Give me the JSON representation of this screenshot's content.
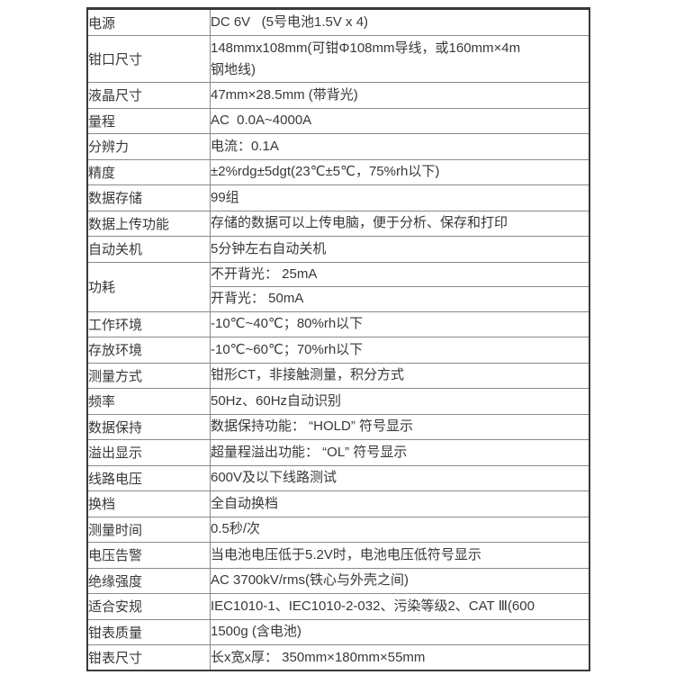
{
  "meta": {
    "description": "product-spec-table",
    "colors": {
      "background": "#ffffff",
      "grid_line": "#8a8a8a",
      "outer_border": "#3a3a3a",
      "text": "#383838"
    }
  },
  "table": {
    "rows": [
      {
        "label": "电源",
        "value": "DC 6V   (5号电池1.5V x 4)"
      },
      {
        "label": "钳口尺寸",
        "value": "148mmx108mm(可钳Φ108mm导线，或160mm×4m\n钢地线)"
      },
      {
        "label": "液晶尺寸",
        "value": "47mm×28.5mm (带背光)"
      },
      {
        "label": "量程",
        "value": "AC  0.0A~4000A"
      },
      {
        "label": "分辨力",
        "value": "电流：0.1A"
      },
      {
        "label": "精度",
        "value": "±2%rdg±5dgt(23℃±5℃，75%rh以下)"
      },
      {
        "label": "数据存储",
        "value": "99组"
      },
      {
        "label": "数据上传功能",
        "value": "存储的数据可以上传电脑，便于分析、保存和打印"
      },
      {
        "label": "自动关机",
        "value": "5分钟左右自动关机"
      },
      {
        "label": "功耗",
        "values": [
          "不开背光： 25mA",
          "开背光： 50mA"
        ]
      },
      {
        "label": "工作环境",
        "value": "-10℃~40℃；80%rh以下"
      },
      {
        "label": "存放环境",
        "value": "-10℃~60℃；70%rh以下"
      },
      {
        "label": "测量方式",
        "value": "钳形CT，非接触测量，积分方式"
      },
      {
        "label": "频率",
        "value": "50Hz、60Hz自动识别"
      },
      {
        "label": "数据保持",
        "value": "数据保持功能： “HOLD” 符号显示"
      },
      {
        "label": "溢出显示",
        "value": "超量程溢出功能： “OL” 符号显示"
      },
      {
        "label": "线路电压",
        "value": "600V及以下线路测试"
      },
      {
        "label": "换档",
        "value": "全自动换档"
      },
      {
        "label": "测量时间",
        "value": "0.5秒/次"
      },
      {
        "label": "电压告警",
        "value": "当电池电压低于5.2V时，电池电压低符号显示"
      },
      {
        "label": "绝缘强度",
        "value": "AC 3700kV/rms(铁心与外壳之间)"
      },
      {
        "label": "适合安规",
        "value": "IEC1010-1、IEC1010-2-032、污染等级2、CAT Ⅲ(600"
      },
      {
        "label": "钳表质量",
        "value": "1500g (含电池)"
      },
      {
        "label": "钳表尺寸",
        "value": "长x宽x厚： 350mm×180mm×55mm"
      }
    ]
  }
}
